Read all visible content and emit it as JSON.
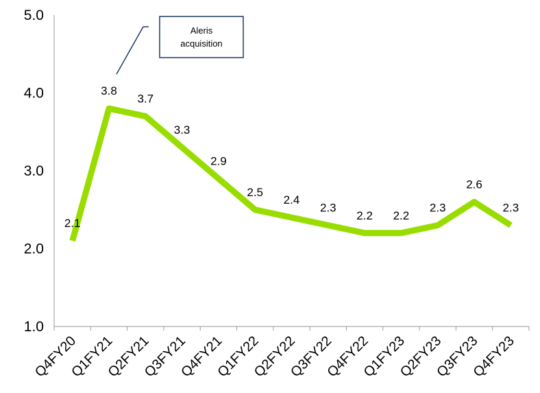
{
  "chart_data": {
    "type": "line",
    "categories": [
      "Q4FY20",
      "Q1FY21",
      "Q2FY21",
      "Q3FY21",
      "Q4FY21",
      "Q1FY22",
      "Q2FY22",
      "Q3FY22",
      "Q4FY22",
      "Q1FY23",
      "Q2FY23",
      "Q3FY23",
      "Q4FY23"
    ],
    "series": [
      {
        "values": [
          2.1,
          3.8,
          3.7,
          3.3,
          2.9,
          2.5,
          2.4,
          2.3,
          2.2,
          2.2,
          2.3,
          2.6,
          2.3
        ]
      }
    ],
    "data_labels": [
      "2.1",
      "3.8",
      "3.7",
      "3.3",
      "2.9",
      "2.5",
      "2.4",
      "2.3",
      "2.2",
      "2.2",
      "2.3",
      "2.6",
      "2.3"
    ],
    "yticks": [
      "1.0",
      "2.0",
      "3.0",
      "4.0",
      "5.0"
    ],
    "ylim": [
      1.0,
      5.0
    ],
    "grid": false,
    "line_color": "#99dd00",
    "annotation": {
      "text_line1": "Aleris",
      "text_line2": "acquisition",
      "category": "Q1FY21",
      "border_color": "#1f3864"
    }
  }
}
